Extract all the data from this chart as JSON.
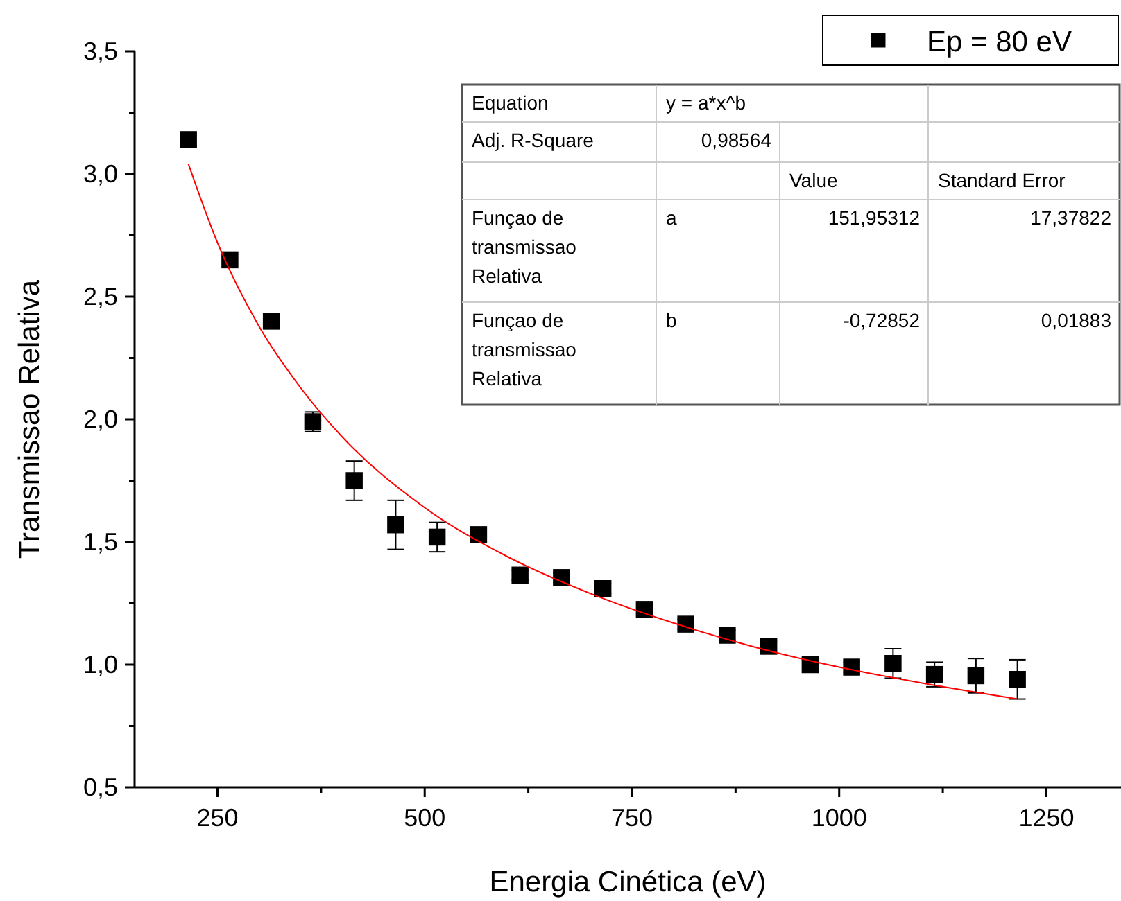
{
  "chart_data": {
    "type": "scatter",
    "xlabel": "Energia Cinética (eV)",
    "ylabel": "Transmissao Relativa",
    "xlim": [
      150,
      1340
    ],
    "xticks": [
      250,
      {
        "value": 375,
        "label": null
      },
      500,
      {
        "value": 625,
        "label": null
      },
      750,
      {
        "value": 875,
        "label": null
      },
      1000,
      {
        "value": 1125,
        "label": null
      },
      1250
    ],
    "ylim": [
      0.5,
      3.5
    ],
    "yticks": [
      {
        "value": 0.5,
        "label": "0,5"
      },
      {
        "value": 0.75,
        "label": null
      },
      {
        "value": 1,
        "label": "1,0"
      },
      {
        "value": 1.25,
        "label": null
      },
      {
        "value": 1.5,
        "label": "1,5"
      },
      {
        "value": 1.75,
        "label": null
      },
      {
        "value": 2,
        "label": "2,0"
      },
      {
        "value": 2.25,
        "label": null
      },
      {
        "value": 2.5,
        "label": "2,5"
      },
      {
        "value": 2.75,
        "label": null
      },
      {
        "value": 3,
        "label": "3,0"
      },
      {
        "value": 3.25,
        "label": null
      },
      {
        "value": 3.5,
        "label": "3,5"
      }
    ],
    "grid": false,
    "legend": "top right",
    "series": [
      {
        "name": "Ep = 80 eV",
        "marker": "square",
        "color": "#000000",
        "x": [
          215,
          265,
          315,
          365,
          415,
          465,
          515,
          565,
          615,
          665,
          715,
          765,
          815,
          865,
          915,
          965,
          1015,
          1065,
          1115,
          1165,
          1215
        ],
        "values": [
          3.14,
          2.65,
          2.4,
          1.99,
          1.75,
          1.57,
          1.52,
          1.53,
          1.365,
          1.355,
          1.31,
          1.225,
          1.165,
          1.12,
          1.075,
          1.0,
          0.99,
          1.005,
          0.96,
          0.955,
          0.94
        ],
        "errors": [
          null,
          null,
          0.02,
          0.04,
          0.08,
          0.1,
          0.06,
          0.02,
          0.02,
          0.02,
          0.02,
          0.02,
          0.02,
          0.02,
          0.02,
          0.02,
          0.02,
          0.06,
          0.05,
          0.07,
          0.08
        ]
      },
      {
        "type": "line",
        "color": "#ff0000",
        "x": [
          215,
          250,
          300,
          350,
          400,
          500,
          600,
          700,
          800,
          900,
          1000,
          1100,
          1215
        ],
        "values": [
          3.04,
          2.72,
          2.38,
          2.13,
          1.93,
          1.64,
          1.44,
          1.29,
          1.17,
          1.07,
          0.99,
          0.925,
          0.86
        ]
      }
    ],
    "annotations": [
      "Equation",
      "y = a*x^b",
      "Adj. R-Square",
      "0,98564",
      "Value",
      "Standard Error",
      "Funçao de transmissao Relativa",
      "a",
      "151,95312",
      "17,37822",
      "Funçao de transmissao Relativa",
      "b",
      "-0,72852",
      "0,01883"
    ]
  }
}
